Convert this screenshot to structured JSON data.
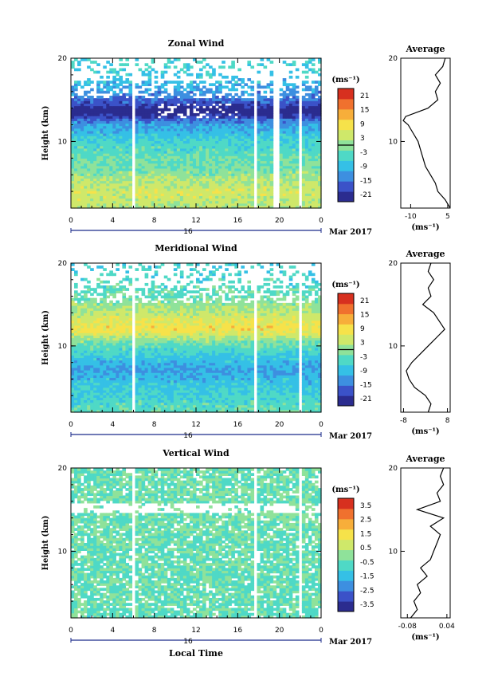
{
  "chart_data": [
    {
      "type": "heatmap",
      "title": "Zonal Wind",
      "ylabel": "Height (km)",
      "yticks": [
        "10",
        "20"
      ],
      "ylim": [
        2,
        20
      ],
      "xticks": [
        "0",
        "4",
        "8",
        "12",
        "16",
        "20",
        "0"
      ],
      "xlim": [
        0,
        24
      ],
      "date_day": "16",
      "date_month": "Mar 2017",
      "colorbar_unit": "(ms⁻¹)",
      "colorbar_ticks": [
        "21",
        "15",
        "9",
        "3",
        "-3",
        "-9",
        "-15",
        "-21"
      ],
      "colorbar_range": [
        -24,
        24
      ],
      "field_by_height": {
        "height": [
          2,
          4,
          6,
          8,
          10,
          12,
          13.5,
          15,
          17,
          19
        ],
        "value": [
          3,
          5,
          0,
          -3,
          -6,
          -12,
          -24,
          -15,
          -9,
          -6
        ]
      },
      "gaps_hours": [
        5.8,
        17.5,
        19.5,
        21.8
      ],
      "average": {
        "title": "Average",
        "xlabel": "(ms⁻¹)",
        "xticks": [
          "-10",
          "5"
        ],
        "xlim": [
          -14,
          6
        ],
        "height": [
          2,
          3,
          4,
          5,
          6,
          7,
          8,
          9,
          10,
          11,
          12,
          12.5,
          13,
          14,
          15,
          16,
          17,
          18,
          19,
          20
        ],
        "values": [
          6,
          4,
          1,
          0,
          -2,
          -4,
          -5,
          -6,
          -7,
          -9,
          -11,
          -13,
          -12,
          -3,
          1,
          0,
          2,
          0,
          3,
          4
        ]
      }
    },
    {
      "type": "heatmap",
      "title": "Meridional Wind",
      "ylabel": "Height (km)",
      "yticks": [
        "10",
        "20"
      ],
      "ylim": [
        2,
        20
      ],
      "xticks": [
        "0",
        "4",
        "8",
        "12",
        "16",
        "20",
        "0"
      ],
      "xlim": [
        0,
        24
      ],
      "date_day": "16",
      "date_month": "Mar 2017",
      "colorbar_unit": "(ms⁻¹)",
      "colorbar_ticks": [
        "21",
        "15",
        "9",
        "3",
        "-3",
        "-9",
        "-15",
        "-21"
      ],
      "colorbar_range": [
        -24,
        24
      ],
      "field_by_height": {
        "height": [
          2,
          4,
          6,
          7,
          8,
          9,
          10,
          11,
          12,
          14,
          16,
          19
        ],
        "value": [
          -3,
          -6,
          -9,
          -12,
          -9,
          -6,
          -3,
          3,
          9,
          3,
          -3,
          -6
        ]
      },
      "gaps_hours": [
        5.8,
        17.5,
        21.8
      ],
      "average": {
        "title": "Average",
        "xlabel": "(ms⁻¹)",
        "xticks": [
          "-8",
          "8"
        ],
        "xlim": [
          -9,
          9
        ],
        "height": [
          2,
          3,
          4,
          5,
          6,
          7,
          8,
          9,
          10,
          11,
          12,
          13,
          14,
          15,
          16,
          17,
          18,
          19,
          20
        ],
        "values": [
          1,
          2,
          0,
          -4,
          -6,
          -7,
          -5,
          -2,
          1,
          4,
          7,
          5,
          3,
          -1,
          2,
          1,
          3,
          1,
          2
        ]
      }
    },
    {
      "type": "heatmap",
      "title": "Vertical Wind",
      "ylabel": "Height (km)",
      "yticks": [
        "10",
        "20"
      ],
      "ylim": [
        2,
        20
      ],
      "xticks": [
        "0",
        "4",
        "8",
        "12",
        "16",
        "20",
        "0"
      ],
      "xlim": [
        0,
        24
      ],
      "date_day": "16",
      "date_month": "Mar 2017",
      "xlabel": "Local Time",
      "colorbar_unit": "(ms⁻¹)",
      "colorbar_ticks": [
        "3.5",
        "2.5",
        "1.5",
        "0.5",
        "-0.5",
        "-1.5",
        "-2.5",
        "-3.5"
      ],
      "colorbar_range": [
        -4,
        4
      ],
      "field_by_height": {
        "height": [
          2,
          6,
          10,
          14,
          18
        ],
        "value": [
          -0.6,
          -0.4,
          -0.5,
          -0.3,
          -0.4
        ]
      },
      "gaps_hours": [
        5.8,
        17.5,
        21.8
      ],
      "average": {
        "title": "Average",
        "xlabel": "(ms⁻¹)",
        "xticks": [
          "-0.08",
          "0.04"
        ],
        "xlim": [
          -0.1,
          0.05
        ],
        "height": [
          2,
          3,
          4,
          5,
          6,
          7,
          8,
          9,
          10,
          11,
          12,
          13,
          14,
          15,
          16,
          17,
          18,
          19,
          20
        ],
        "values": [
          -0.07,
          -0.05,
          -0.06,
          -0.04,
          -0.05,
          -0.02,
          -0.04,
          -0.01,
          0.0,
          0.01,
          0.02,
          -0.01,
          0.03,
          -0.05,
          0.02,
          0.01,
          0.03,
          0.02,
          0.03
        ]
      }
    }
  ],
  "colors": {
    "scale": [
      "#2b2c8f",
      "#3b52c8",
      "#3d8fe0",
      "#35c0e6",
      "#4fd9c6",
      "#8fe29a",
      "#cfe86a",
      "#f6e24a",
      "#f7ae3a",
      "#f0712e",
      "#d7301f"
    ]
  }
}
